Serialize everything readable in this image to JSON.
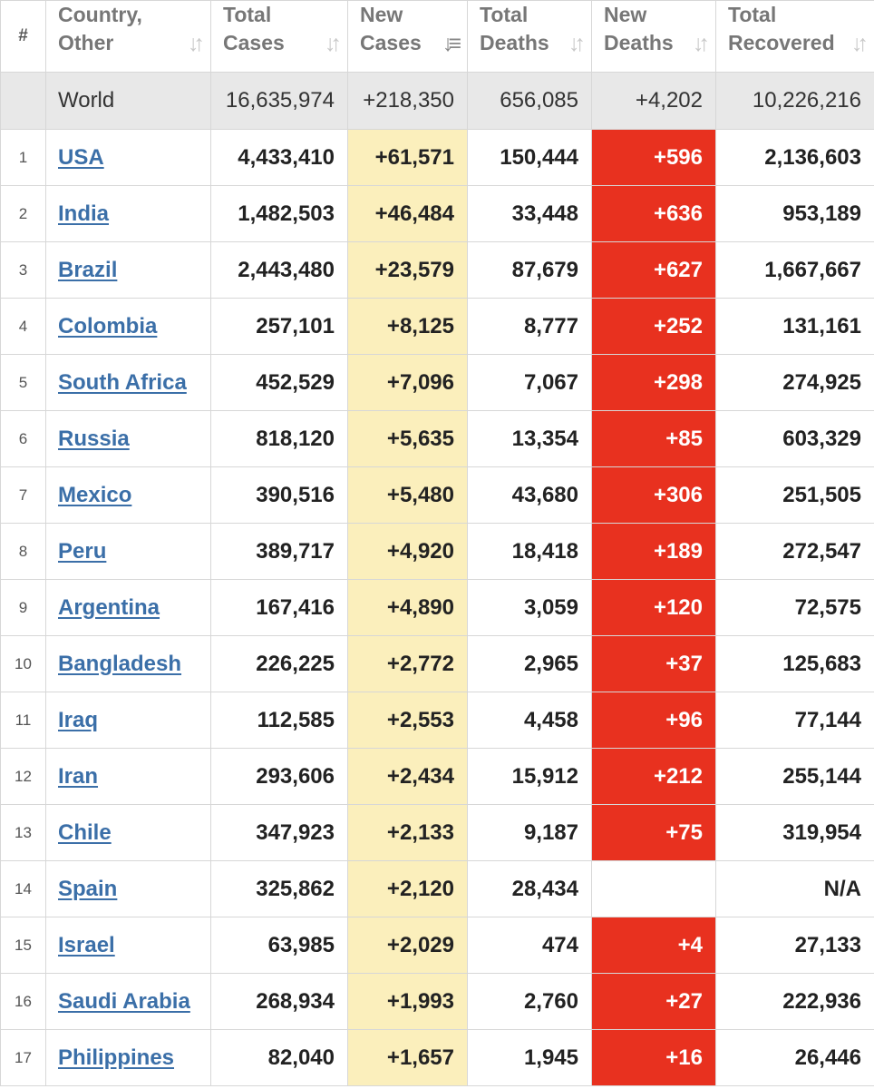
{
  "header": {
    "rank": "#",
    "country": [
      "Country,",
      "Other"
    ],
    "total_cases": [
      "Total",
      "Cases"
    ],
    "new_cases": [
      "New",
      "Cases"
    ],
    "total_deaths": [
      "Total",
      "Deaths"
    ],
    "new_deaths": [
      "New",
      "Deaths"
    ],
    "total_recovered": [
      "Total",
      "Recovered"
    ]
  },
  "world": {
    "country": "World",
    "total_cases": "16,635,974",
    "new_cases": "+218,350",
    "total_deaths": "656,085",
    "new_deaths": "+4,202",
    "total_recovered": "10,226,216"
  },
  "rows": [
    {
      "rank": "1",
      "country": "USA",
      "total_cases": "4,433,410",
      "new_cases": "+61,571",
      "total_deaths": "150,444",
      "new_deaths": "+596",
      "total_recovered": "2,136,603"
    },
    {
      "rank": "2",
      "country": "India",
      "total_cases": "1,482,503",
      "new_cases": "+46,484",
      "total_deaths": "33,448",
      "new_deaths": "+636",
      "total_recovered": "953,189"
    },
    {
      "rank": "3",
      "country": "Brazil",
      "total_cases": "2,443,480",
      "new_cases": "+23,579",
      "total_deaths": "87,679",
      "new_deaths": "+627",
      "total_recovered": "1,667,667"
    },
    {
      "rank": "4",
      "country": "Colombia",
      "total_cases": "257,101",
      "new_cases": "+8,125",
      "total_deaths": "8,777",
      "new_deaths": "+252",
      "total_recovered": "131,161"
    },
    {
      "rank": "5",
      "country": "South Africa",
      "total_cases": "452,529",
      "new_cases": "+7,096",
      "total_deaths": "7,067",
      "new_deaths": "+298",
      "total_recovered": "274,925"
    },
    {
      "rank": "6",
      "country": "Russia",
      "total_cases": "818,120",
      "new_cases": "+5,635",
      "total_deaths": "13,354",
      "new_deaths": "+85",
      "total_recovered": "603,329"
    },
    {
      "rank": "7",
      "country": "Mexico",
      "total_cases": "390,516",
      "new_cases": "+5,480",
      "total_deaths": "43,680",
      "new_deaths": "+306",
      "total_recovered": "251,505"
    },
    {
      "rank": "8",
      "country": "Peru",
      "total_cases": "389,717",
      "new_cases": "+4,920",
      "total_deaths": "18,418",
      "new_deaths": "+189",
      "total_recovered": "272,547"
    },
    {
      "rank": "9",
      "country": "Argentina",
      "total_cases": "167,416",
      "new_cases": "+4,890",
      "total_deaths": "3,059",
      "new_deaths": "+120",
      "total_recovered": "72,575"
    },
    {
      "rank": "10",
      "country": "Bangladesh",
      "total_cases": "226,225",
      "new_cases": "+2,772",
      "total_deaths": "2,965",
      "new_deaths": "+37",
      "total_recovered": "125,683"
    },
    {
      "rank": "11",
      "country": "Iraq",
      "total_cases": "112,585",
      "new_cases": "+2,553",
      "total_deaths": "4,458",
      "new_deaths": "+96",
      "total_recovered": "77,144"
    },
    {
      "rank": "12",
      "country": "Iran",
      "total_cases": "293,606",
      "new_cases": "+2,434",
      "total_deaths": "15,912",
      "new_deaths": "+212",
      "total_recovered": "255,144"
    },
    {
      "rank": "13",
      "country": "Chile",
      "total_cases": "347,923",
      "new_cases": "+2,133",
      "total_deaths": "9,187",
      "new_deaths": "+75",
      "total_recovered": "319,954"
    },
    {
      "rank": "14",
      "country": "Spain",
      "total_cases": "325,862",
      "new_cases": "+2,120",
      "total_deaths": "28,434",
      "new_deaths": "",
      "total_recovered": "N/A"
    },
    {
      "rank": "15",
      "country": "Israel",
      "total_cases": "63,985",
      "new_cases": "+2,029",
      "total_deaths": "474",
      "new_deaths": "+4",
      "total_recovered": "27,133"
    },
    {
      "rank": "16",
      "country": "Saudi Arabia",
      "total_cases": "268,934",
      "new_cases": "+1,993",
      "total_deaths": "2,760",
      "new_deaths": "+27",
      "total_recovered": "222,936"
    },
    {
      "rank": "17",
      "country": "Philippines",
      "total_cases": "82,040",
      "new_cases": "+1,657",
      "total_deaths": "1,945",
      "new_deaths": "+16",
      "total_recovered": "26,446"
    }
  ],
  "colors": {
    "new_cases_bg": "#fbefbc",
    "new_deaths_bg": "#e8311f",
    "world_row_bg": "#e8e8e8",
    "link": "#3b6fa8"
  },
  "icons": {
    "sort_idle": "sort-arrows-icon",
    "sort_active": "sort-descending-icon"
  }
}
